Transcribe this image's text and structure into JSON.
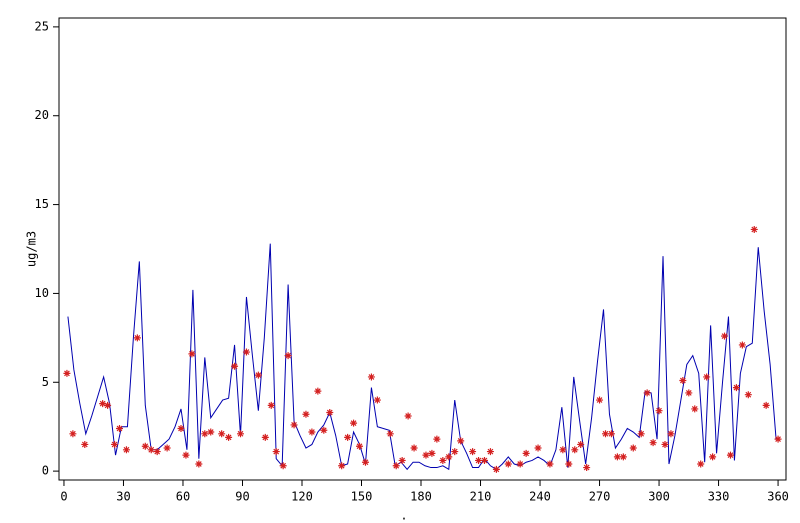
{
  "chart_data": {
    "type": "line",
    "ylabel": "ug/m3",
    "xlabel": ".",
    "xlim": [
      -2.5,
      364
    ],
    "ylim": [
      -0.5,
      25.5
    ],
    "xticks": [
      0,
      30,
      60,
      90,
      120,
      150,
      180,
      210,
      240,
      270,
      300,
      330,
      360
    ],
    "yticks": [
      0,
      5,
      10,
      15,
      20,
      25
    ],
    "series": [
      {
        "type": "line",
        "color": "#0000b0",
        "x": [
          2,
          5,
          8,
          11,
          14,
          17,
          20,
          23,
          26,
          29,
          32,
          35,
          38,
          41,
          44,
          47,
          50,
          53,
          56,
          59,
          62,
          65,
          68,
          71,
          74,
          77,
          80,
          83,
          86,
          89,
          92,
          95,
          98,
          101,
          104,
          107,
          110,
          113,
          116,
          119,
          122,
          125,
          128,
          131,
          134,
          137,
          140,
          143,
          146,
          149,
          152,
          155,
          158,
          161,
          164,
          167,
          170,
          173,
          176,
          179,
          182,
          185,
          188,
          191,
          194,
          197,
          200,
          203,
          206,
          209,
          212,
          215,
          218,
          221,
          224,
          227,
          230,
          233,
          236,
          239,
          242,
          245,
          248,
          251,
          254,
          257,
          260,
          263,
          266,
          269,
          272,
          275,
          278,
          281,
          284,
          287,
          290,
          293,
          296,
          299,
          302,
          305,
          308,
          311,
          314,
          317,
          320,
          323,
          326,
          329,
          332,
          335,
          338,
          341,
          344,
          347,
          350,
          353,
          356,
          359
        ],
        "values": [
          8.7,
          5.7,
          3.8,
          2.1,
          3.1,
          4.2,
          5.3,
          3.8,
          0.9,
          2.5,
          2.5,
          7.5,
          11.8,
          3.7,
          1.2,
          1.2,
          1.5,
          1.8,
          2.5,
          3.5,
          1.2,
          10.2,
          0.7,
          6.4,
          3.0,
          3.5,
          4.0,
          4.1,
          7.1,
          2.0,
          9.8,
          6.5,
          3.4,
          7.5,
          12.8,
          0.7,
          0.3,
          10.5,
          2.8,
          2.0,
          1.3,
          1.5,
          2.2,
          2.6,
          3.3,
          2.0,
          0.3,
          0.4,
          2.2,
          1.5,
          0.4,
          4.7,
          2.5,
          2.4,
          2.3,
          0.3,
          0.5,
          0.1,
          0.5,
          0.5,
          0.3,
          0.2,
          0.2,
          0.3,
          0.1,
          4.0,
          1.7,
          1.0,
          0.2,
          0.2,
          0.7,
          0.3,
          0.1,
          0.4,
          0.8,
          0.4,
          0.3,
          0.5,
          0.6,
          0.8,
          0.6,
          0.3,
          1.2,
          3.6,
          0.2,
          5.3,
          2.8,
          0.4,
          3.0,
          6.2,
          9.1,
          3.2,
          1.3,
          1.8,
          2.4,
          2.2,
          1.9,
          4.5,
          4.4,
          1.8,
          12.1,
          0.4,
          2.0,
          4.0,
          6.0,
          6.5,
          5.5,
          0.5,
          8.2,
          1.0,
          5.0,
          8.7,
          0.6,
          5.5,
          7.0,
          7.2,
          12.6,
          9.0,
          6.0,
          1.8
        ]
      },
      {
        "type": "scatter",
        "color": "#d42020",
        "x": [
          1.5,
          4.5,
          10.5,
          19.5,
          22,
          25.5,
          28,
          31.5,
          37,
          41,
          44,
          47,
          52,
          59,
          61.5,
          64.5,
          68,
          71,
          74,
          79.5,
          83,
          86,
          89,
          92,
          98,
          101.5,
          104.5,
          107,
          110.5,
          113,
          116,
          122,
          125,
          128,
          131,
          134,
          140,
          143,
          146,
          149,
          152,
          155,
          158,
          164.5,
          167.5,
          170.5,
          173.5,
          176.5,
          182.5,
          185.5,
          188,
          191,
          194,
          197,
          200,
          206,
          209,
          212,
          215,
          218,
          224,
          230,
          233,
          239,
          245,
          251.5,
          254.5,
          257.5,
          260.5,
          263.5,
          270,
          273,
          276,
          279,
          282,
          287,
          291,
          294,
          297,
          300,
          303,
          306,
          312,
          315,
          318,
          321,
          324,
          327,
          333,
          336,
          339,
          342,
          345,
          348,
          354,
          360
        ],
        "values": [
          5.5,
          2.1,
          1.5,
          3.8,
          3.7,
          1.5,
          2.4,
          1.2,
          7.5,
          1.4,
          1.2,
          1.1,
          1.3,
          2.4,
          0.9,
          6.6,
          0.4,
          2.1,
          2.2,
          2.1,
          1.9,
          5.9,
          2.1,
          6.7,
          5.4,
          1.9,
          3.7,
          1.1,
          0.3,
          6.5,
          2.6,
          3.2,
          2.2,
          4.5,
          2.3,
          3.3,
          0.3,
          1.9,
          2.7,
          1.4,
          0.5,
          5.3,
          4.0,
          2.1,
          0.3,
          0.6,
          3.1,
          1.3,
          0.9,
          1.0,
          1.8,
          0.6,
          0.8,
          1.1,
          1.7,
          1.1,
          0.6,
          0.6,
          1.1,
          0.1,
          0.4,
          0.4,
          1.0,
          1.3,
          0.4,
          1.2,
          0.4,
          1.2,
          1.5,
          0.2,
          4.0,
          2.1,
          2.1,
          0.8,
          0.8,
          1.3,
          2.1,
          4.4,
          1.6,
          3.4,
          1.5,
          2.1,
          5.1,
          4.4,
          3.5,
          0.4,
          5.3,
          0.8,
          7.6,
          0.9,
          4.7,
          7.1,
          4.3,
          13.6,
          3.7,
          1.8
        ]
      }
    ]
  }
}
